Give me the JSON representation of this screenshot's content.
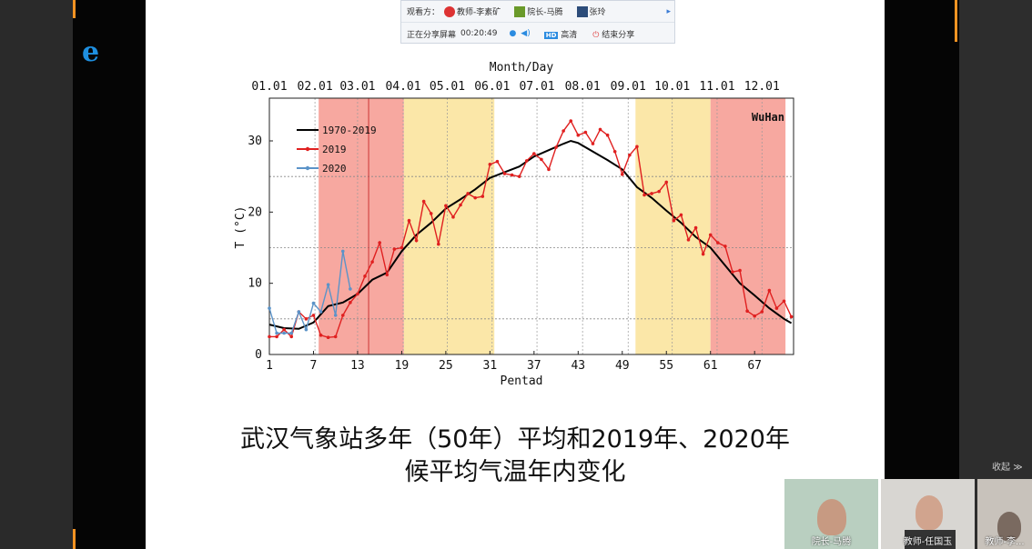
{
  "toolbar": {
    "viewers_label": "观看方：",
    "viewers": [
      "教师-李素矿",
      "院长-马腾",
      "张玲"
    ],
    "sharing_label": "正在分享屏幕",
    "timer": "00:20:49",
    "hd_badge": "HD",
    "quality": "高清",
    "end_share": "结束分享"
  },
  "slide": {
    "caption_line1": "武汉气象站多年（50年）平均和2019年、2020年",
    "caption_line2": "候平均气温年内变化"
  },
  "video": {
    "collapse": "收起",
    "tiles": [
      {
        "name": "院长-马腾"
      },
      {
        "name": "教师-任国玉"
      },
      {
        "name": "教师-李..."
      }
    ]
  },
  "colors": {
    "accent_orange": "#f39322",
    "series_1970_2019": "#000000",
    "series_2019": "#e02020",
    "series_2020": "#5b93c8",
    "band_red": "#f7a8a0",
    "band_yellow": "#fbe7a8"
  },
  "chart_data": {
    "type": "line",
    "title": "",
    "station_label": "WuHan",
    "xlabel": "Pentad",
    "ylabel": "T (°C)",
    "top_axis_label": "Month/Day",
    "xlim": [
      1,
      72.3
    ],
    "ylim": [
      0,
      36
    ],
    "x_ticks": [
      1,
      7,
      13,
      19,
      25,
      31,
      37,
      43,
      49,
      55,
      61,
      67
    ],
    "y_ticks": [
      0,
      10,
      20,
      30
    ],
    "top_ticks": [
      "01.01",
      "02.01",
      "03.01",
      "04.01",
      "05.01",
      "06.01",
      "07.01",
      "08.01",
      "09.01",
      "10.01",
      "11.01",
      "12.01"
    ],
    "grid": "dotted horizontal at 5,15,25; dotted vertical at month boundaries",
    "bands": [
      {
        "from": 7.7,
        "to": 19.3,
        "color": "red"
      },
      {
        "from": 19.3,
        "to": 31.6,
        "color": "yellow"
      },
      {
        "from": 50.8,
        "to": 61,
        "color": "yellow"
      },
      {
        "from": 61,
        "to": 71.2,
        "color": "red"
      }
    ],
    "marker_line_pentad": 14.5,
    "legend_position": "top-left",
    "series": [
      {
        "name": "1970-2019",
        "x": [
          1,
          3,
          5,
          7,
          9,
          11,
          13,
          15,
          17,
          19,
          21,
          23,
          25,
          27,
          29,
          31,
          33,
          35,
          37,
          39,
          41,
          42,
          43,
          45,
          47,
          49,
          51,
          53,
          55,
          57,
          59,
          61,
          63,
          65,
          67,
          69,
          71,
          72
        ],
        "values": [
          4.2,
          3.7,
          3.6,
          4.5,
          6.8,
          7.3,
          8.5,
          10.5,
          11.5,
          14.5,
          16.8,
          18.5,
          20.5,
          21.8,
          23.2,
          24.8,
          25.6,
          26.4,
          27.8,
          28.7,
          29.6,
          30,
          29.7,
          28.5,
          27.3,
          26,
          23.5,
          22,
          20.2,
          18.5,
          16.5,
          15,
          12.5,
          10,
          8.3,
          6.5,
          5,
          4.4
        ]
      },
      {
        "name": "2019",
        "x": [
          1,
          2,
          3,
          4,
          5,
          6,
          7,
          8,
          9,
          10,
          11,
          12,
          13,
          14,
          15,
          16,
          17,
          18,
          19,
          20,
          21,
          22,
          23,
          24,
          25,
          26,
          27,
          28,
          29,
          30,
          31,
          32,
          33,
          34,
          35,
          36,
          37,
          38,
          39,
          40,
          41,
          42,
          43,
          44,
          45,
          46,
          47,
          48,
          49,
          50,
          51,
          52,
          53,
          54,
          55,
          56,
          57,
          58,
          59,
          60,
          61,
          62,
          63,
          64,
          65,
          66,
          67,
          68,
          69,
          70,
          71,
          72
        ],
        "values": [
          2.5,
          2.5,
          3.5,
          2.5,
          6,
          5,
          5.5,
          2.7,
          2.4,
          2.5,
          5.5,
          7.3,
          8.5,
          11,
          13,
          15.7,
          11.2,
          14.8,
          15,
          18.8,
          16,
          21.5,
          19.8,
          15.5,
          20.9,
          19.3,
          21,
          22.6,
          22,
          22.2,
          26.7,
          27.1,
          25.4,
          25.2,
          25,
          27.2,
          28.2,
          27.4,
          26,
          29.1,
          31.4,
          32.8,
          30.8,
          31.2,
          29.6,
          31.6,
          30.8,
          28.5,
          25.3,
          28,
          29.2,
          22.4,
          22.6,
          22.9,
          24.2,
          18.8,
          19.6,
          16.1,
          17.8,
          14.1,
          16.8,
          15.7,
          15.2,
          11.6,
          11.8,
          6.1,
          5.4,
          6,
          9,
          6.5,
          7.5,
          5.3
        ]
      },
      {
        "name": "2020",
        "x": [
          1,
          2,
          3,
          4,
          5,
          6,
          7,
          8,
          9,
          10,
          11,
          12
        ],
        "values": [
          6.5,
          3,
          3,
          3,
          6,
          3.5,
          7.2,
          6,
          9.8,
          5.5,
          14.5,
          9.2
        ]
      }
    ]
  }
}
